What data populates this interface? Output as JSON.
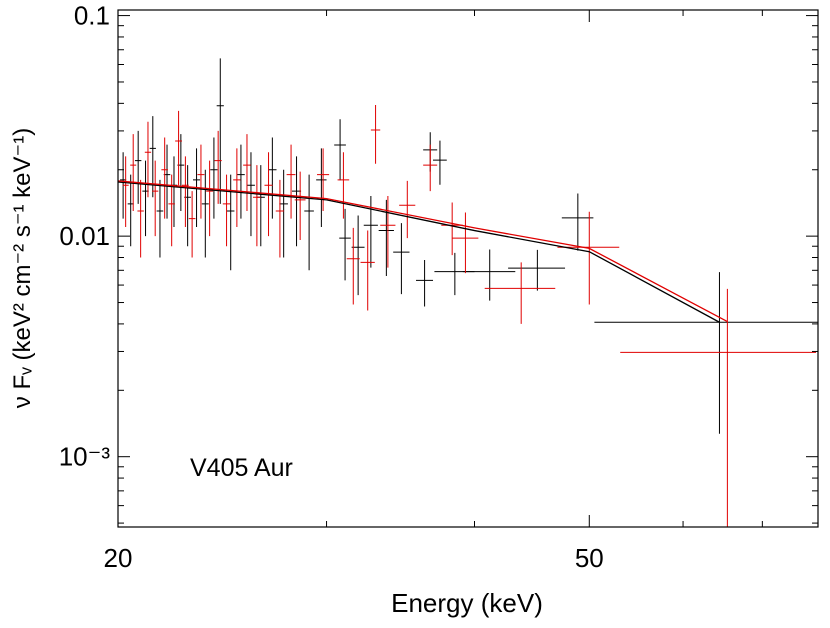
{
  "chart_data": {
    "type": "errorbar",
    "xlabel": "Energy (keV)",
    "ylabel": "ν Fᵥ (keV² cm⁻² s⁻¹ keV⁻¹)",
    "annotation": "V405 Aur",
    "xscale": "log",
    "yscale": "log",
    "xlim": [
      20,
      78
    ],
    "ylim": [
      0.00048,
      0.106
    ],
    "xticks": [
      20,
      50
    ],
    "xminor": [
      30,
      40,
      60,
      70
    ],
    "yticks": [
      0.1,
      0.01,
      {
        "value": 0.001,
        "label": "10⁻³"
      }
    ],
    "yminor": [
      0.0005,
      0.0006,
      0.0007,
      0.0008,
      0.0009,
      0.002,
      0.003,
      0.004,
      0.005,
      0.006,
      0.007,
      0.008,
      0.009,
      0.02,
      0.03,
      0.04,
      0.05,
      0.06,
      0.07,
      0.08,
      0.09
    ],
    "series": [
      {
        "color": "#000000",
        "x": [
          20.2,
          20.5,
          20.8,
          21.1,
          21.4,
          21.7,
          22.0,
          22.3,
          22.6,
          22.9,
          23.3,
          23.7,
          24.1,
          24.4,
          24.9,
          25.4,
          25.9,
          26.4,
          27.0,
          27.6,
          28.3,
          29.0,
          29.7,
          30.8,
          31.1,
          31.9,
          32.7,
          33.7,
          34.7,
          36.3,
          36.7,
          37.4,
          38.5,
          41.2,
          45.2,
          48.9,
          64.4
        ],
        "values": [
          0.018,
          0.014,
          0.022,
          0.016,
          0.025,
          0.013,
          0.019,
          0.017,
          0.021,
          0.015,
          0.018,
          0.014,
          0.02,
          0.039,
          0.013,
          0.019,
          0.017,
          0.015,
          0.02,
          0.014,
          0.016,
          0.013,
          0.018,
          0.0259,
          0.0098,
          0.0089,
          0.0112,
          0.0106,
          0.00846,
          0.0063,
          0.0246,
          0.0221,
          0.0069,
          0.0069,
          0.00716,
          0.0121,
          0.00407
        ],
        "xerr": [
          0.12,
          0.12,
          0.13,
          0.13,
          0.13,
          0.14,
          0.14,
          0.14,
          0.15,
          0.15,
          0.16,
          0.16,
          0.17,
          0.17,
          0.18,
          0.19,
          0.2,
          0.21,
          0.22,
          0.23,
          0.25,
          0.27,
          0.3,
          0.35,
          0.35,
          0.4,
          0.45,
          0.5,
          0.55,
          0.6,
          0.5,
          0.5,
          1.5,
          2.1,
          2.5,
          1.5,
          13.9
        ],
        "yerr": [
          0.006,
          0.005,
          0.008,
          0.006,
          0.01,
          0.005,
          0.007,
          0.006,
          0.008,
          0.006,
          0.007,
          0.006,
          0.008,
          0.025,
          0.006,
          0.007,
          0.007,
          0.006,
          0.008,
          0.006,
          0.007,
          0.006,
          0.007,
          0.008,
          0.0035,
          0.0035,
          0.004,
          0.004,
          0.003,
          0.0015,
          0.005,
          0.005,
          0.0015,
          0.0018,
          0.0015,
          0.0035,
          0.0028
        ]
      },
      {
        "color": "#e00000",
        "x": [
          20.3,
          20.6,
          20.9,
          21.2,
          21.5,
          21.9,
          22.2,
          22.5,
          22.8,
          23.1,
          23.5,
          23.9,
          24.3,
          24.7,
          25.2,
          25.7,
          26.2,
          26.8,
          27.4,
          28.0,
          28.5,
          29.8,
          31.0,
          31.6,
          32.5,
          33.0,
          33.8,
          35.1,
          36.7,
          38.3,
          39.3,
          43.8,
          50.0,
          65.4
        ],
        "values": [
          0.017,
          0.021,
          0.013,
          0.024,
          0.016,
          0.02,
          0.014,
          0.027,
          0.017,
          0.012,
          0.019,
          0.016,
          0.022,
          0.014,
          0.018,
          0.021,
          0.015,
          0.017,
          0.013,
          0.019,
          0.0146,
          0.019,
          0.018,
          0.0079,
          0.0076,
          0.0303,
          0.0112,
          0.0138,
          0.021,
          0.0112,
          0.0098,
          0.0058,
          0.0089,
          0.00297
        ],
        "xerr": [
          0.12,
          0.12,
          0.13,
          0.13,
          0.13,
          0.14,
          0.14,
          0.15,
          0.15,
          0.15,
          0.16,
          0.16,
          0.17,
          0.18,
          0.18,
          0.19,
          0.2,
          0.21,
          0.22,
          0.24,
          0.3,
          0.35,
          0.35,
          0.4,
          0.45,
          0.3,
          0.5,
          0.55,
          0.5,
          0.8,
          1.0,
          3.0,
          3.0,
          12.3
        ],
        "yerr": [
          0.006,
          0.008,
          0.005,
          0.009,
          0.006,
          0.008,
          0.005,
          0.01,
          0.006,
          0.004,
          0.007,
          0.006,
          0.008,
          0.005,
          0.007,
          0.008,
          0.006,
          0.007,
          0.005,
          0.007,
          0.005,
          0.006,
          0.006,
          0.003,
          0.003,
          0.009,
          0.004,
          0.004,
          0.005,
          0.003,
          0.003,
          0.0018,
          0.004,
          0.0028
        ]
      }
    ],
    "models": [
      {
        "color": "#000000",
        "x": [
          20,
          30,
          40,
          50,
          64.4
        ],
        "values": [
          0.0176,
          0.0146,
          0.0106,
          0.0085,
          0.00407
        ]
      },
      {
        "color": "#e00000",
        "x": [
          20,
          30,
          40,
          50,
          65.4
        ],
        "values": [
          0.0178,
          0.0148,
          0.0109,
          0.0088,
          0.0041
        ]
      }
    ]
  }
}
